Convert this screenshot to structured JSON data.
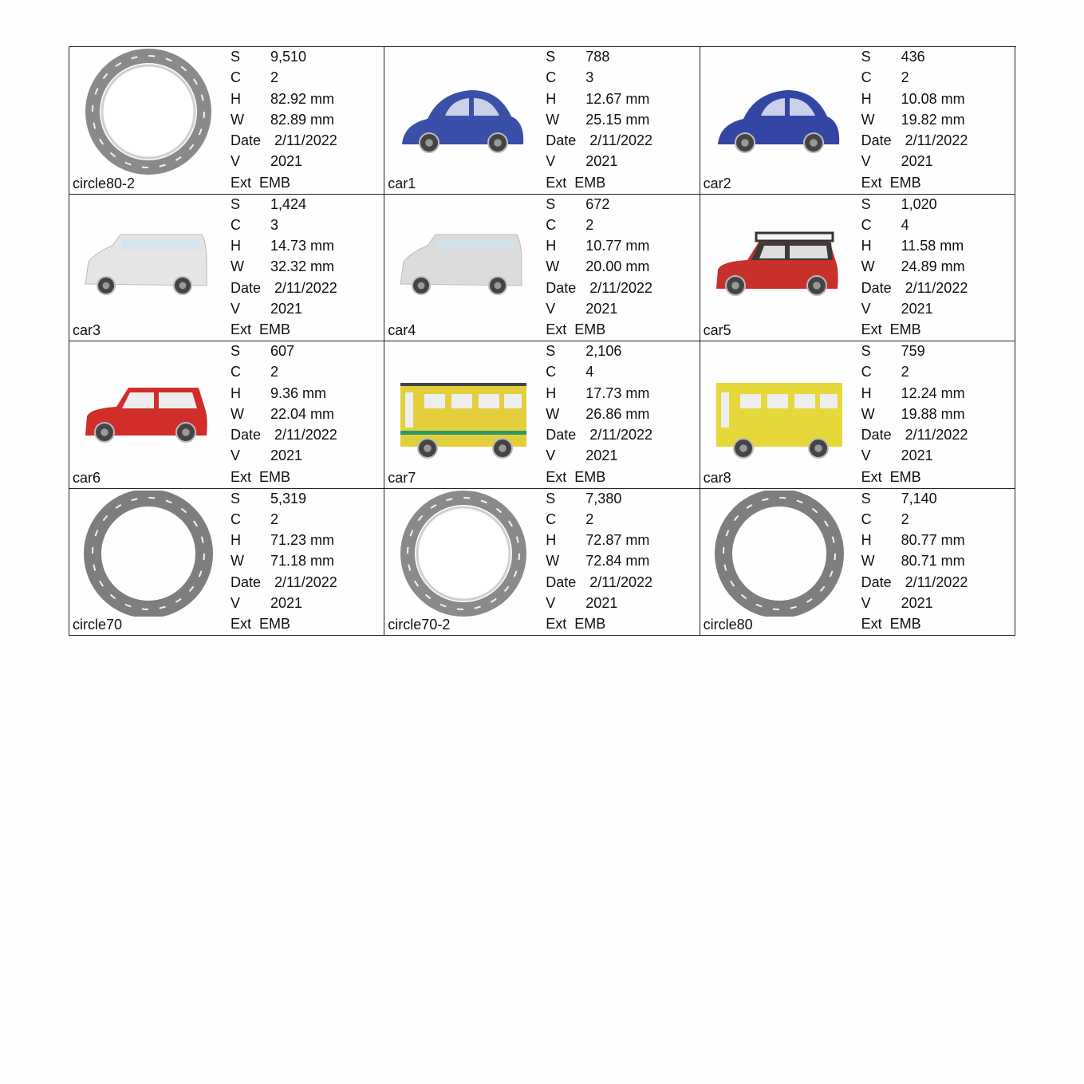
{
  "labels": {
    "s": "S",
    "c": "C",
    "h": "H",
    "w": "W",
    "date": "Date",
    "v": "V",
    "ext": "Ext"
  },
  "designs": [
    {
      "name": "circle80-2",
      "s": "9,510",
      "c": "2",
      "h": "82.92 mm",
      "w": "82.89 mm",
      "date": "2/11/2022",
      "v": "2021",
      "ext": "EMB",
      "thumbnail": "ring-outlined",
      "color": "#8a8a8a"
    },
    {
      "name": "car1",
      "s": "788",
      "c": "3",
      "h": "12.67 mm",
      "w": "25.15 mm",
      "date": "2/11/2022",
      "v": "2021",
      "ext": "EMB",
      "thumbnail": "beetle",
      "color": "#3a4fa8"
    },
    {
      "name": "car2",
      "s": "436",
      "c": "2",
      "h": "10.08 mm",
      "w": "19.82 mm",
      "date": "2/11/2022",
      "v": "2021",
      "ext": "EMB",
      "thumbnail": "beetle",
      "color": "#3446a3"
    },
    {
      "name": "car3",
      "s": "1,424",
      "c": "3",
      "h": "14.73 mm",
      "w": "32.32 mm",
      "date": "2/11/2022",
      "v": "2021",
      "ext": "EMB",
      "thumbnail": "van",
      "color": "#e6e6e6"
    },
    {
      "name": "car4",
      "s": "672",
      "c": "2",
      "h": "10.77 mm",
      "w": "20.00 mm",
      "date": "2/11/2022",
      "v": "2021",
      "ext": "EMB",
      "thumbnail": "van",
      "color": "#dcdcdc"
    },
    {
      "name": "car5",
      "s": "1,020",
      "c": "4",
      "h": "11.58 mm",
      "w": "24.89 mm",
      "date": "2/11/2022",
      "v": "2021",
      "ext": "EMB",
      "thumbnail": "mini-roof",
      "color": "#c8302c"
    },
    {
      "name": "car6",
      "s": "607",
      "c": "2",
      "h": "9.36 mm",
      "w": "22.04 mm",
      "date": "2/11/2022",
      "v": "2021",
      "ext": "EMB",
      "thumbnail": "mini",
      "color": "#d02d2b"
    },
    {
      "name": "car7",
      "s": "2,106",
      "c": "4",
      "h": "17.73 mm",
      "w": "26.86 mm",
      "date": "2/11/2022",
      "v": "2021",
      "ext": "EMB",
      "thumbnail": "bus-striped",
      "color": "#e3cf3c"
    },
    {
      "name": "car8",
      "s": "759",
      "c": "2",
      "h": "12.24 mm",
      "w": "19.88 mm",
      "date": "2/11/2022",
      "v": "2021",
      "ext": "EMB",
      "thumbnail": "bus",
      "color": "#e6d83a"
    },
    {
      "name": "circle70",
      "s": "5,319",
      "c": "2",
      "h": "71.23 mm",
      "w": "71.18 mm",
      "date": "2/11/2022",
      "v": "2021",
      "ext": "EMB",
      "thumbnail": "ring",
      "color": "#7e7e7e"
    },
    {
      "name": "circle70-2",
      "s": "7,380",
      "c": "2",
      "h": "72.87 mm",
      "w": "72.84 mm",
      "date": "2/11/2022",
      "v": "2021",
      "ext": "EMB",
      "thumbnail": "ring-outlined",
      "color": "#8a8a8a"
    },
    {
      "name": "circle80",
      "s": "7,140",
      "c": "2",
      "h": "80.77 mm",
      "w": "80.71 mm",
      "date": "2/11/2022",
      "v": "2021",
      "ext": "EMB",
      "thumbnail": "ring",
      "color": "#7e7e7e"
    }
  ]
}
